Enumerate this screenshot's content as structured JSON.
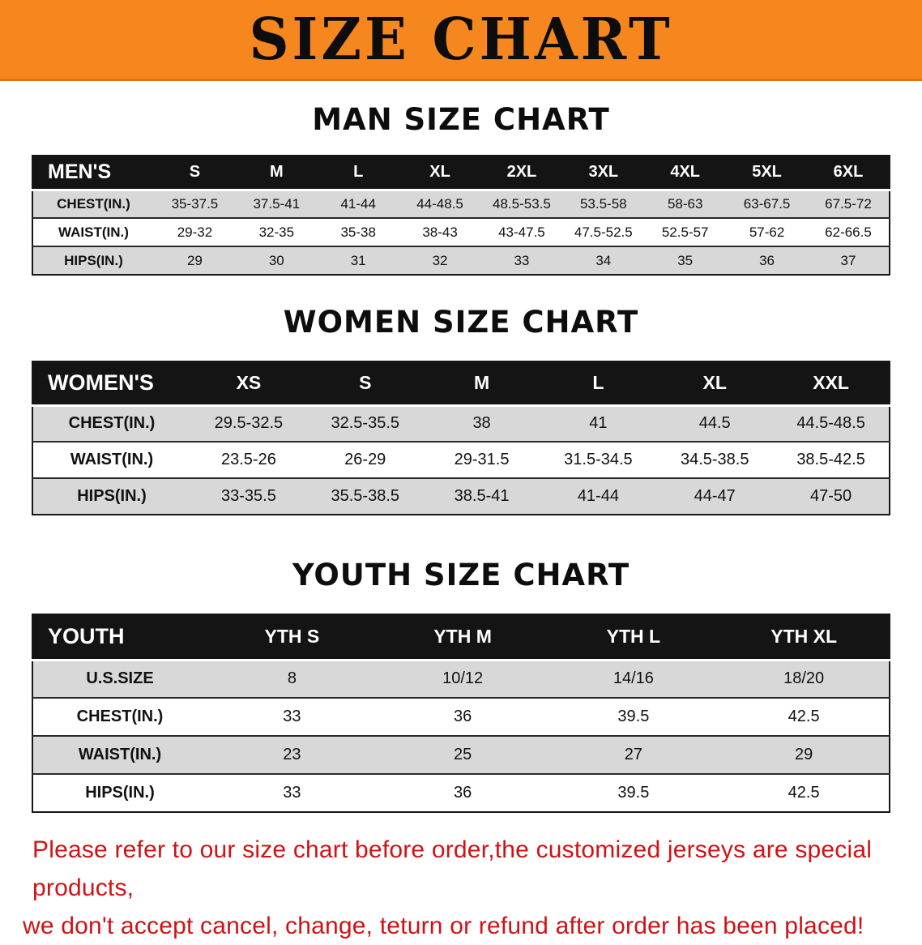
{
  "banner": {
    "title": "SIZE CHART"
  },
  "sections": [
    {
      "heading": "MAN SIZE CHART",
      "table": {
        "header": [
          "MEN'S",
          "S",
          "M",
          "L",
          "XL",
          "2XL",
          "3XL",
          "4XL",
          "5XL",
          "6XL"
        ],
        "rows": [
          {
            "label": "CHEST(IN.)",
            "values": [
              "35-37.5",
              "37.5-41",
              "41-44",
              "44-48.5",
              "48.5-53.5",
              "53.5-58",
              "58-63",
              "63-67.5",
              "67.5-72"
            ]
          },
          {
            "label": "WAIST(IN.)",
            "values": [
              "29-32",
              "32-35",
              "35-38",
              "38-43",
              "43-47.5",
              "47.5-52.5",
              "52.5-57",
              "57-62",
              "62-66.5"
            ]
          },
          {
            "label": "HIPS(IN.)",
            "values": [
              "29",
              "30",
              "31",
              "32",
              "33",
              "34",
              "35",
              "36",
              "37"
            ]
          }
        ]
      }
    },
    {
      "heading": "WOMEN SIZE CHART",
      "table": {
        "header": [
          "WOMEN'S",
          "XS",
          "S",
          "M",
          "L",
          "XL",
          "XXL"
        ],
        "rows": [
          {
            "label": "CHEST(IN.)",
            "values": [
              "29.5-32.5",
              "32.5-35.5",
              "38",
              "41",
              "44.5",
              "44.5-48.5"
            ]
          },
          {
            "label": "WAIST(IN.)",
            "values": [
              "23.5-26",
              "26-29",
              "29-31.5",
              "31.5-34.5",
              "34.5-38.5",
              "38.5-42.5"
            ]
          },
          {
            "label": "HIPS(IN.)",
            "values": [
              "33-35.5",
              "35.5-38.5",
              "38.5-41",
              "41-44",
              "44-47",
              "47-50"
            ]
          }
        ]
      }
    },
    {
      "heading": "YOUTH SIZE CHART",
      "table": {
        "header": [
          "YOUTH",
          "YTH S",
          "YTH M",
          "YTH L",
          "YTH XL"
        ],
        "rows": [
          {
            "label": "U.S.SIZE",
            "values": [
              "8",
              "10/12",
              "14/16",
              "18/20"
            ]
          },
          {
            "label": "CHEST(IN.)",
            "values": [
              "33",
              "36",
              "39.5",
              "42.5"
            ]
          },
          {
            "label": "WAIST(IN.)",
            "values": [
              "23",
              "25",
              "27",
              "29"
            ]
          },
          {
            "label": "HIPS(IN.)",
            "values": [
              "33",
              "36",
              "39.5",
              "42.5"
            ]
          }
        ]
      }
    }
  ],
  "footer": {
    "line1": "Please refer to our size chart before order,the customized jerseys are special products,",
    "line2": "we don't accept cancel, change, teturn or refund after order has been placed!"
  },
  "colors": {
    "orange": "#f6871f",
    "ink": "#141414",
    "shade": "#d8d8d8",
    "red": "#cf1315"
  }
}
